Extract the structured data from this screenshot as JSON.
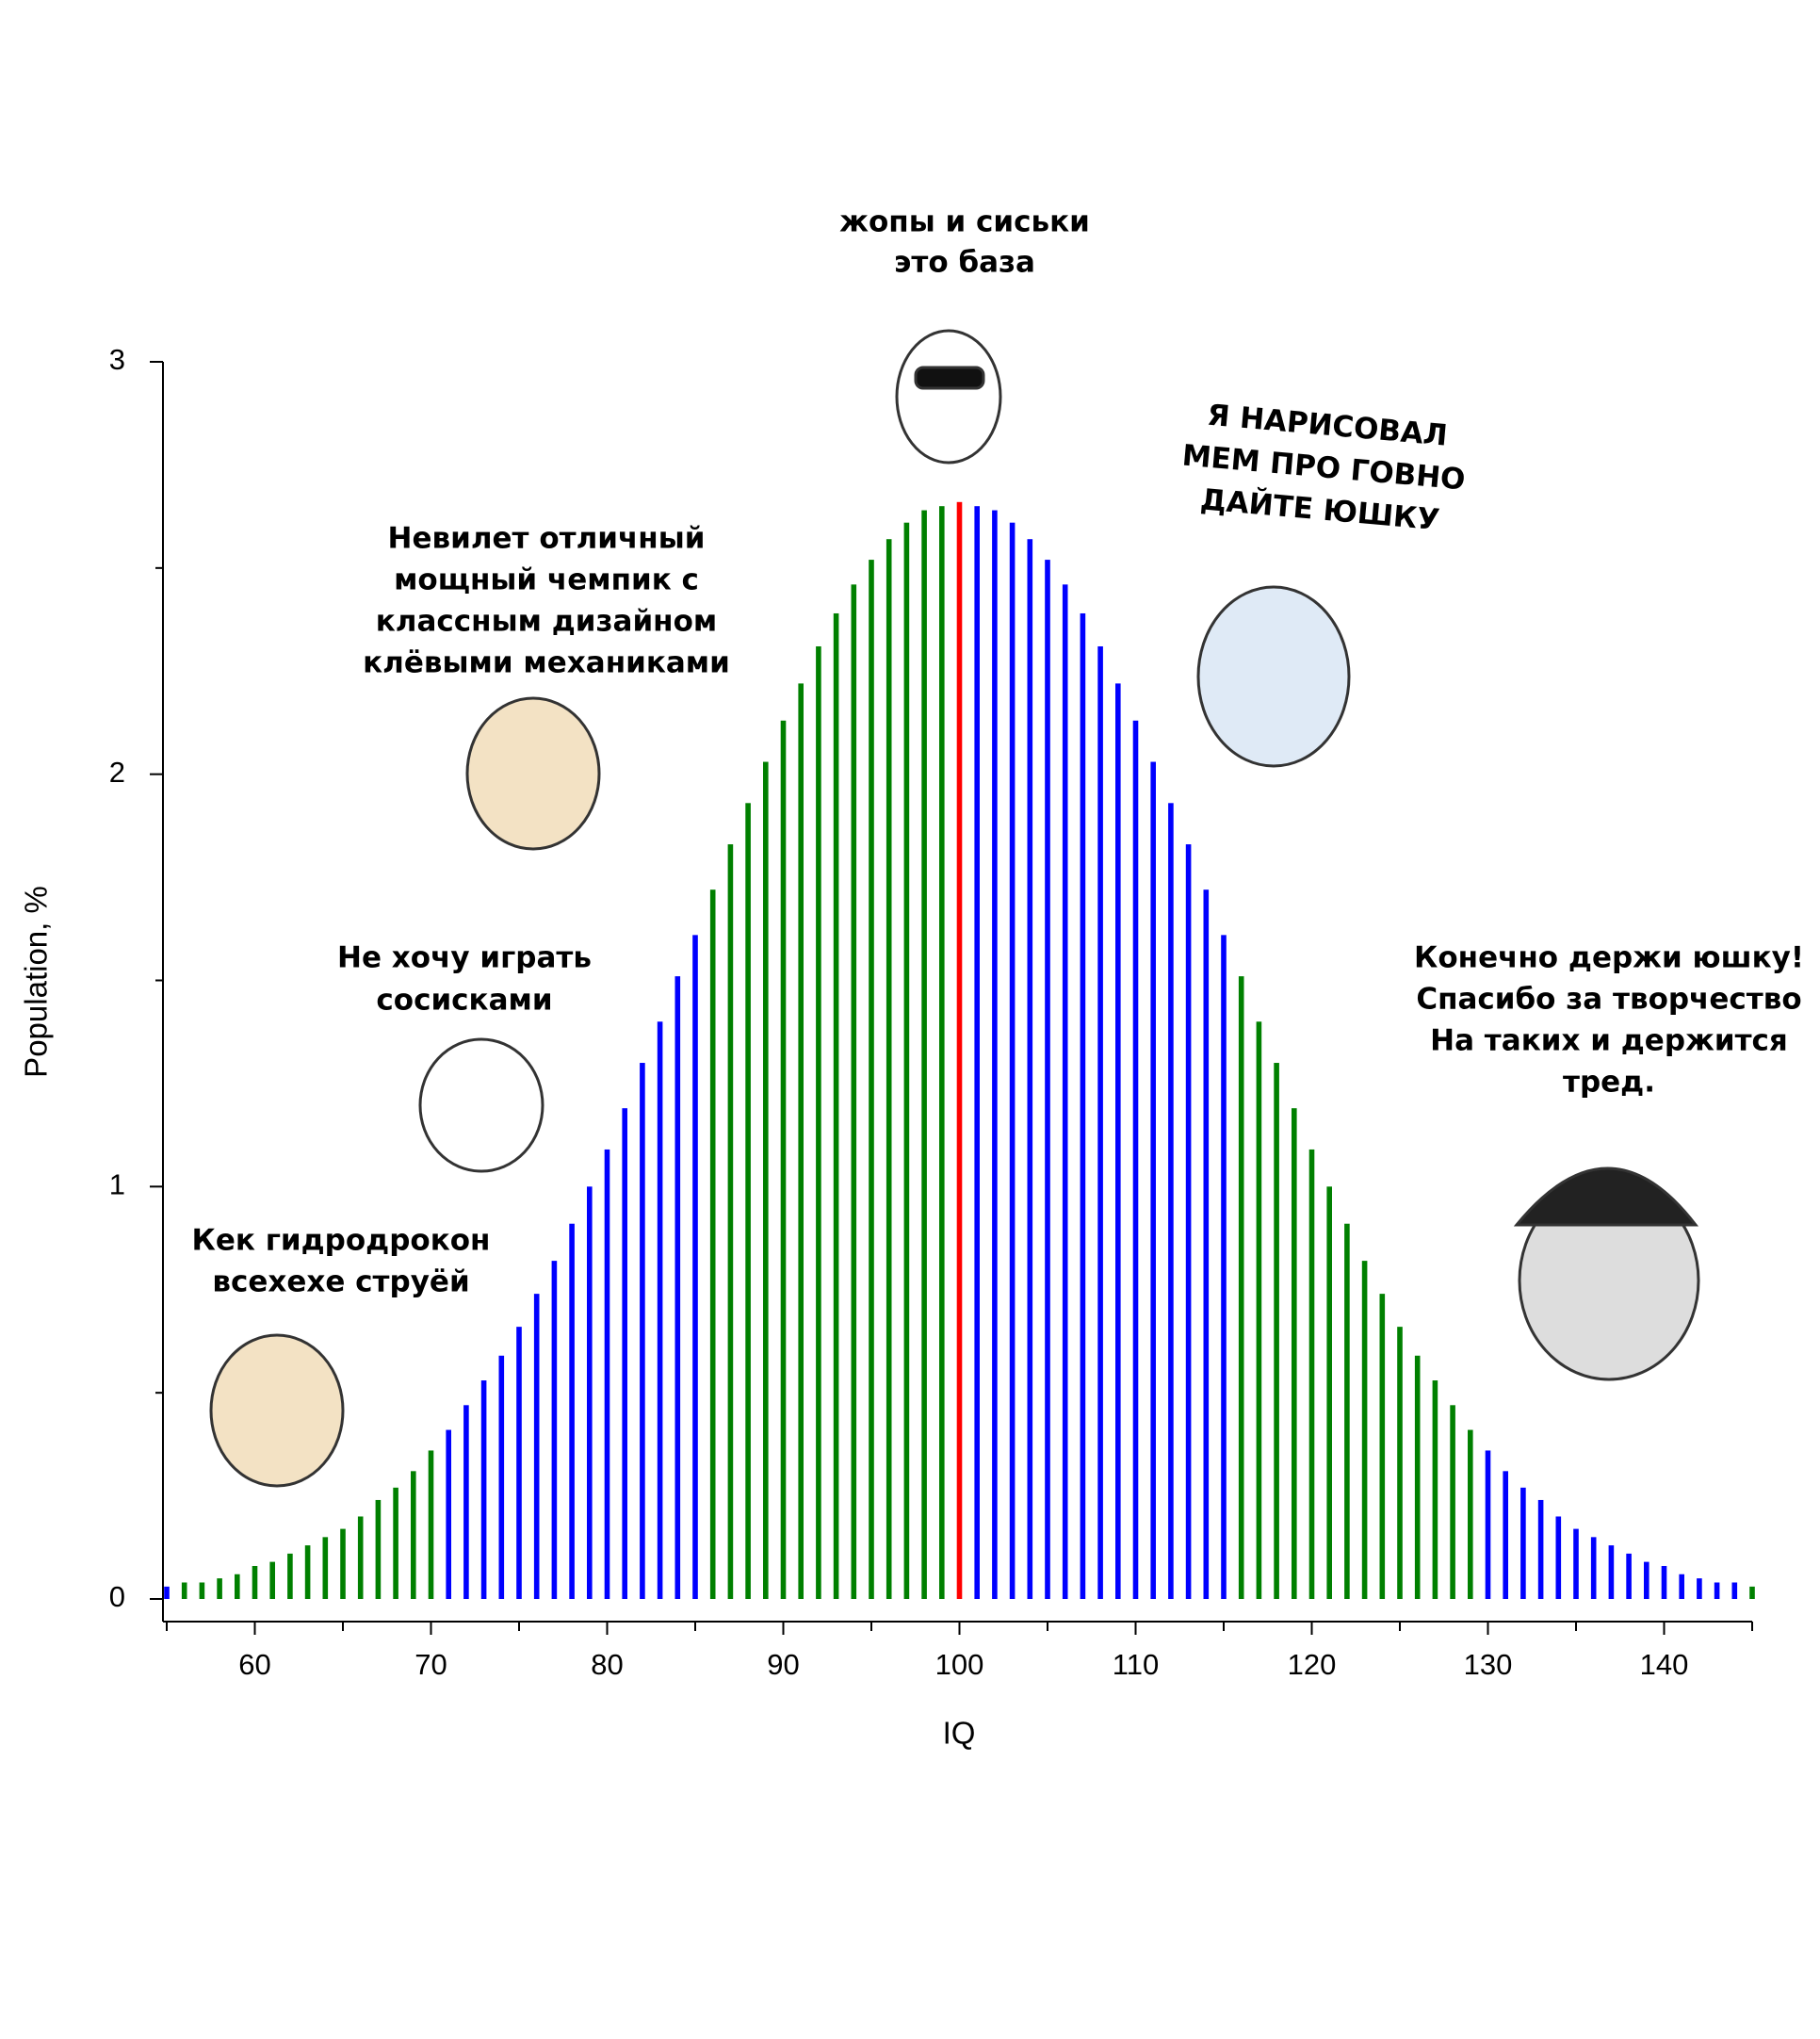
{
  "chart_data": {
    "type": "bar",
    "xlabel": "IQ",
    "ylabel": "Population, %",
    "x": [
      55,
      56,
      57,
      58,
      59,
      60,
      61,
      62,
      63,
      64,
      65,
      66,
      67,
      68,
      69,
      70,
      71,
      72,
      73,
      74,
      75,
      76,
      77,
      78,
      79,
      80,
      81,
      82,
      83,
      84,
      85,
      86,
      87,
      88,
      89,
      90,
      91,
      92,
      93,
      94,
      95,
      96,
      97,
      98,
      99,
      100,
      101,
      102,
      103,
      104,
      105,
      106,
      107,
      108,
      109,
      110,
      111,
      112,
      113,
      114,
      115,
      116,
      117,
      118,
      119,
      120,
      121,
      122,
      123,
      124,
      125,
      126,
      127,
      128,
      129,
      130,
      131,
      132,
      133,
      134,
      135,
      136,
      137,
      138,
      139,
      140,
      141,
      142,
      143,
      144,
      145
    ],
    "values": [
      0.03,
      0.04,
      0.04,
      0.05,
      0.06,
      0.08,
      0.09,
      0.11,
      0.13,
      0.15,
      0.17,
      0.2,
      0.24,
      0.27,
      0.31,
      0.36,
      0.41,
      0.47,
      0.53,
      0.59,
      0.66,
      0.74,
      0.82,
      0.91,
      1.0,
      1.09,
      1.19,
      1.3,
      1.4,
      1.51,
      1.61,
      1.72,
      1.83,
      1.93,
      2.03,
      2.13,
      2.22,
      2.31,
      2.39,
      2.46,
      2.52,
      2.57,
      2.61,
      2.64,
      2.65,
      2.66,
      2.65,
      2.64,
      2.61,
      2.57,
      2.52,
      2.46,
      2.39,
      2.31,
      2.22,
      2.13,
      2.03,
      1.93,
      1.83,
      1.72,
      1.61,
      1.51,
      1.4,
      1.3,
      1.19,
      1.09,
      1.0,
      0.91,
      0.82,
      0.74,
      0.66,
      0.59,
      0.53,
      0.47,
      0.41,
      0.36,
      0.31,
      0.27,
      0.24,
      0.2,
      0.17,
      0.15,
      0.13,
      0.11,
      0.09,
      0.08,
      0.06,
      0.05,
      0.04,
      0.04,
      0.03
    ],
    "colors": [
      "#0000ff",
      "#008000",
      "#008000",
      "#008000",
      "#008000",
      "#008000",
      "#008000",
      "#008000",
      "#008000",
      "#008000",
      "#008000",
      "#008000",
      "#008000",
      "#008000",
      "#008000",
      "#008000",
      "#0000ff",
      "#0000ff",
      "#0000ff",
      "#0000ff",
      "#0000ff",
      "#0000ff",
      "#0000ff",
      "#0000ff",
      "#0000ff",
      "#0000ff",
      "#0000ff",
      "#0000ff",
      "#0000ff",
      "#0000ff",
      "#0000ff",
      "#008000",
      "#008000",
      "#008000",
      "#008000",
      "#008000",
      "#008000",
      "#008000",
      "#008000",
      "#008000",
      "#008000",
      "#008000",
      "#008000",
      "#008000",
      "#008000",
      "#ff0000",
      "#0000ff",
      "#0000ff",
      "#0000ff",
      "#0000ff",
      "#0000ff",
      "#0000ff",
      "#0000ff",
      "#0000ff",
      "#0000ff",
      "#0000ff",
      "#0000ff",
      "#0000ff",
      "#0000ff",
      "#0000ff",
      "#0000ff",
      "#008000",
      "#008000",
      "#008000",
      "#008000",
      "#008000",
      "#008000",
      "#008000",
      "#008000",
      "#008000",
      "#008000",
      "#008000",
      "#008000",
      "#008000",
      "#008000",
      "#0000ff",
      "#0000ff",
      "#0000ff",
      "#0000ff",
      "#0000ff",
      "#0000ff",
      "#0000ff",
      "#0000ff",
      "#0000ff",
      "#0000ff",
      "#0000ff",
      "#0000ff",
      "#0000ff",
      "#0000ff",
      "#0000ff",
      "#008000"
    ],
    "xlim": [
      55,
      145
    ],
    "xticks": [
      60,
      70,
      80,
      90,
      100,
      110,
      120,
      130,
      140
    ],
    "xminorticks": [
      55,
      65,
      75,
      85,
      95,
      105,
      115,
      125,
      135,
      145
    ],
    "ylim": [
      0,
      3
    ],
    "yticks": [
      0,
      1,
      2,
      3
    ],
    "yminorticks": [
      0.5,
      1.5,
      2.5
    ],
    "annotations": [
      {
        "lines": [
          "жопы и сиськи",
          "это база"
        ]
      },
      {
        "lines": [
          "Я НАРИСОВАЛ",
          "МЕМ ПРО ГОВНО",
          "ДАЙТЕ ЮШКУ"
        ]
      },
      {
        "lines": [
          "Невилет отличный",
          "мощный чемпик с",
          "классным дизайном",
          "клёвыми механиками"
        ]
      },
      {
        "lines": [
          "Не хочу играть",
          "сосисками"
        ]
      },
      {
        "lines": [
          "Кек гидродрокон",
          "всехехе струёй"
        ]
      },
      {
        "lines": [
          "Конечно держи юшку!",
          "Спасибо за творчество",
          "На таких и держится",
          "тред."
        ]
      }
    ]
  }
}
